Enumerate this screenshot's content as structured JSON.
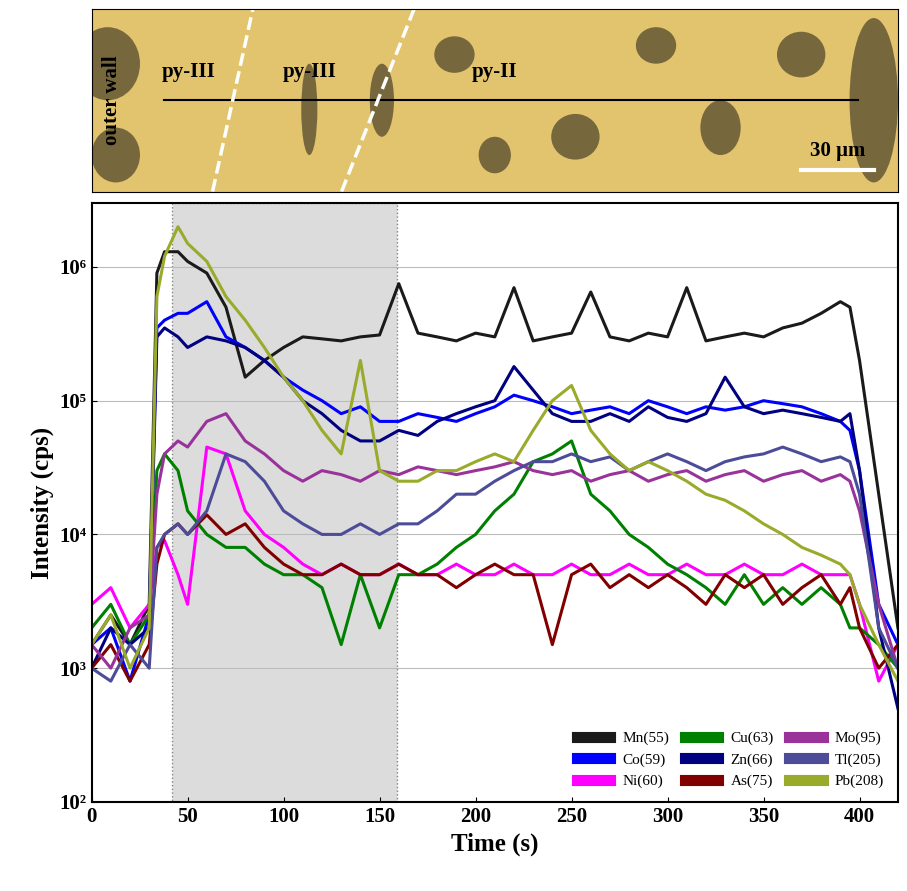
{
  "chart_data": {
    "type": "line",
    "image_labels": [
      "outer wall",
      "py-III",
      "py-III",
      "py-II",
      "30 μm"
    ],
    "xlabel": "Time (s)",
    "ylabel": "Intensity (cps)",
    "log": "y",
    "grid": true,
    "legend": "lower right",
    "highlight": [
      42,
      159
    ],
    "xlim": [
      0,
      420
    ],
    "xticks": [
      0,
      50,
      100,
      150,
      200,
      250,
      300,
      350,
      400
    ],
    "ylim": [
      100,
      3000000
    ],
    "yticks": [
      {
        "value": 100,
        "label": "10²"
      },
      {
        "value": 1000,
        "label": "10³"
      },
      {
        "value": 10000,
        "label": "10⁴"
      },
      {
        "value": 100000,
        "label": "10⁵"
      },
      {
        "value": 1000000,
        "label": "10⁶"
      }
    ],
    "x": [
      0,
      10,
      20,
      30,
      34,
      38,
      45,
      50,
      60,
      70,
      80,
      90,
      100,
      110,
      120,
      130,
      140,
      150,
      160,
      170,
      180,
      190,
      200,
      210,
      220,
      230,
      240,
      250,
      260,
      270,
      280,
      290,
      300,
      310,
      320,
      330,
      340,
      350,
      360,
      370,
      380,
      390,
      395,
      400,
      410,
      420
    ],
    "series": [
      {
        "name": "Mn(55)",
        "color": "#1a1a1a",
        "values": [
          1500,
          2500,
          1500,
          3000,
          900000,
          1300000,
          1300000,
          1100000,
          900000,
          500000,
          150000,
          200000,
          250000,
          300000,
          290000,
          280000,
          300000,
          310000,
          750000,
          320000,
          300000,
          280000,
          320000,
          300000,
          700000,
          280000,
          300000,
          320000,
          650000,
          300000,
          280000,
          320000,
          300000,
          700000,
          280000,
          300000,
          320000,
          300000,
          350000,
          380000,
          450000,
          550000,
          500000,
          200000,
          20000,
          2000
        ]
      },
      {
        "name": "Co(59)",
        "color": "#0000ff",
        "values": [
          1500,
          2000,
          800,
          2500,
          350000,
          400000,
          450000,
          450000,
          550000,
          300000,
          250000,
          200000,
          150000,
          120000,
          100000,
          80000,
          90000,
          70000,
          70000,
          80000,
          75000,
          70000,
          80000,
          90000,
          110000,
          100000,
          90000,
          80000,
          85000,
          90000,
          80000,
          100000,
          90000,
          80000,
          90000,
          85000,
          90000,
          100000,
          95000,
          90000,
          80000,
          70000,
          60000,
          30000,
          3000,
          1500
        ]
      },
      {
        "name": "Ni(60)",
        "color": "#ff00ff",
        "values": [
          3000,
          4000,
          2000,
          3000,
          8000,
          9000,
          5000,
          3000,
          45000,
          40000,
          15000,
          10000,
          8000,
          6000,
          5000,
          6000,
          5000,
          5000,
          6000,
          5000,
          5000,
          6000,
          5000,
          5000,
          6000,
          5000,
          5000,
          6000,
          5000,
          5000,
          6000,
          5000,
          5000,
          6000,
          5000,
          5000,
          6000,
          5000,
          5000,
          6000,
          5000,
          5000,
          5000,
          3000,
          800,
          1500
        ]
      },
      {
        "name": "Cu(63)",
        "color": "#008000",
        "values": [
          2000,
          3000,
          1500,
          2500,
          30000,
          40000,
          30000,
          15000,
          10000,
          8000,
          8000,
          6000,
          5000,
          5000,
          4000,
          1500,
          5000,
          2000,
          5000,
          5000,
          6000,
          8000,
          10000,
          15000,
          20000,
          35000,
          40000,
          50000,
          20000,
          15000,
          10000,
          8000,
          6000,
          5000,
          4000,
          3000,
          5000,
          3000,
          4000,
          3000,
          4000,
          3000,
          2000,
          2000,
          1500,
          1000
        ]
      },
      {
        "name": "Zn(66)",
        "color": "#000080",
        "values": [
          1000,
          2000,
          1500,
          2000,
          300000,
          350000,
          300000,
          250000,
          300000,
          280000,
          250000,
          200000,
          150000,
          100000,
          80000,
          60000,
          50000,
          50000,
          60000,
          55000,
          70000,
          80000,
          90000,
          100000,
          180000,
          120000,
          80000,
          70000,
          70000,
          80000,
          70000,
          90000,
          75000,
          70000,
          80000,
          150000,
          90000,
          80000,
          85000,
          80000,
          75000,
          70000,
          80000,
          30000,
          2000,
          500
        ]
      },
      {
        "name": "As(75)",
        "color": "#800000",
        "values": [
          1000,
          1500,
          800,
          1500,
          6000,
          10000,
          12000,
          10000,
          14000,
          10000,
          12000,
          8000,
          6000,
          5000,
          5000,
          6000,
          5000,
          5000,
          6000,
          5000,
          5000,
          4000,
          5000,
          6000,
          5000,
          5000,
          1500,
          5000,
          6000,
          4000,
          5000,
          4000,
          5000,
          4000,
          3000,
          5000,
          4000,
          5000,
          3000,
          4000,
          5000,
          3000,
          4000,
          2000,
          1000,
          1500
        ]
      },
      {
        "name": "Mo(95)",
        "color": "#993399",
        "values": [
          1500,
          1000,
          2000,
          2500,
          20000,
          40000,
          50000,
          45000,
          70000,
          80000,
          50000,
          40000,
          30000,
          25000,
          30000,
          28000,
          25000,
          30000,
          28000,
          32000,
          30000,
          28000,
          30000,
          32000,
          35000,
          30000,
          28000,
          30000,
          25000,
          28000,
          30000,
          25000,
          28000,
          30000,
          25000,
          28000,
          30000,
          25000,
          28000,
          30000,
          25000,
          28000,
          25000,
          15000,
          3000,
          1000
        ]
      },
      {
        "name": "Tl(205)",
        "color": "#4c4c99",
        "values": [
          1000,
          800,
          1500,
          1000,
          8000,
          10000,
          12000,
          10000,
          15000,
          40000,
          35000,
          25000,
          15000,
          12000,
          10000,
          10000,
          12000,
          10000,
          12000,
          12000,
          15000,
          20000,
          20000,
          25000,
          30000,
          35000,
          35000,
          40000,
          35000,
          38000,
          30000,
          35000,
          40000,
          35000,
          30000,
          35000,
          38000,
          40000,
          45000,
          40000,
          35000,
          38000,
          35000,
          20000,
          2000,
          1000
        ]
      },
      {
        "name": "Pb(208)",
        "color": "#9aaa2a",
        "values": [
          1500,
          2500,
          1000,
          2000,
          600000,
          1200000,
          2000000,
          1500000,
          1100000,
          600000,
          400000,
          250000,
          150000,
          100000,
          60000,
          40000,
          200000,
          30000,
          25000,
          25000,
          30000,
          30000,
          35000,
          40000,
          35000,
          60000,
          100000,
          130000,
          60000,
          40000,
          30000,
          35000,
          30000,
          25000,
          20000,
          18000,
          15000,
          12000,
          10000,
          8000,
          7000,
          6000,
          5000,
          3000,
          1500,
          800
        ]
      }
    ]
  }
}
